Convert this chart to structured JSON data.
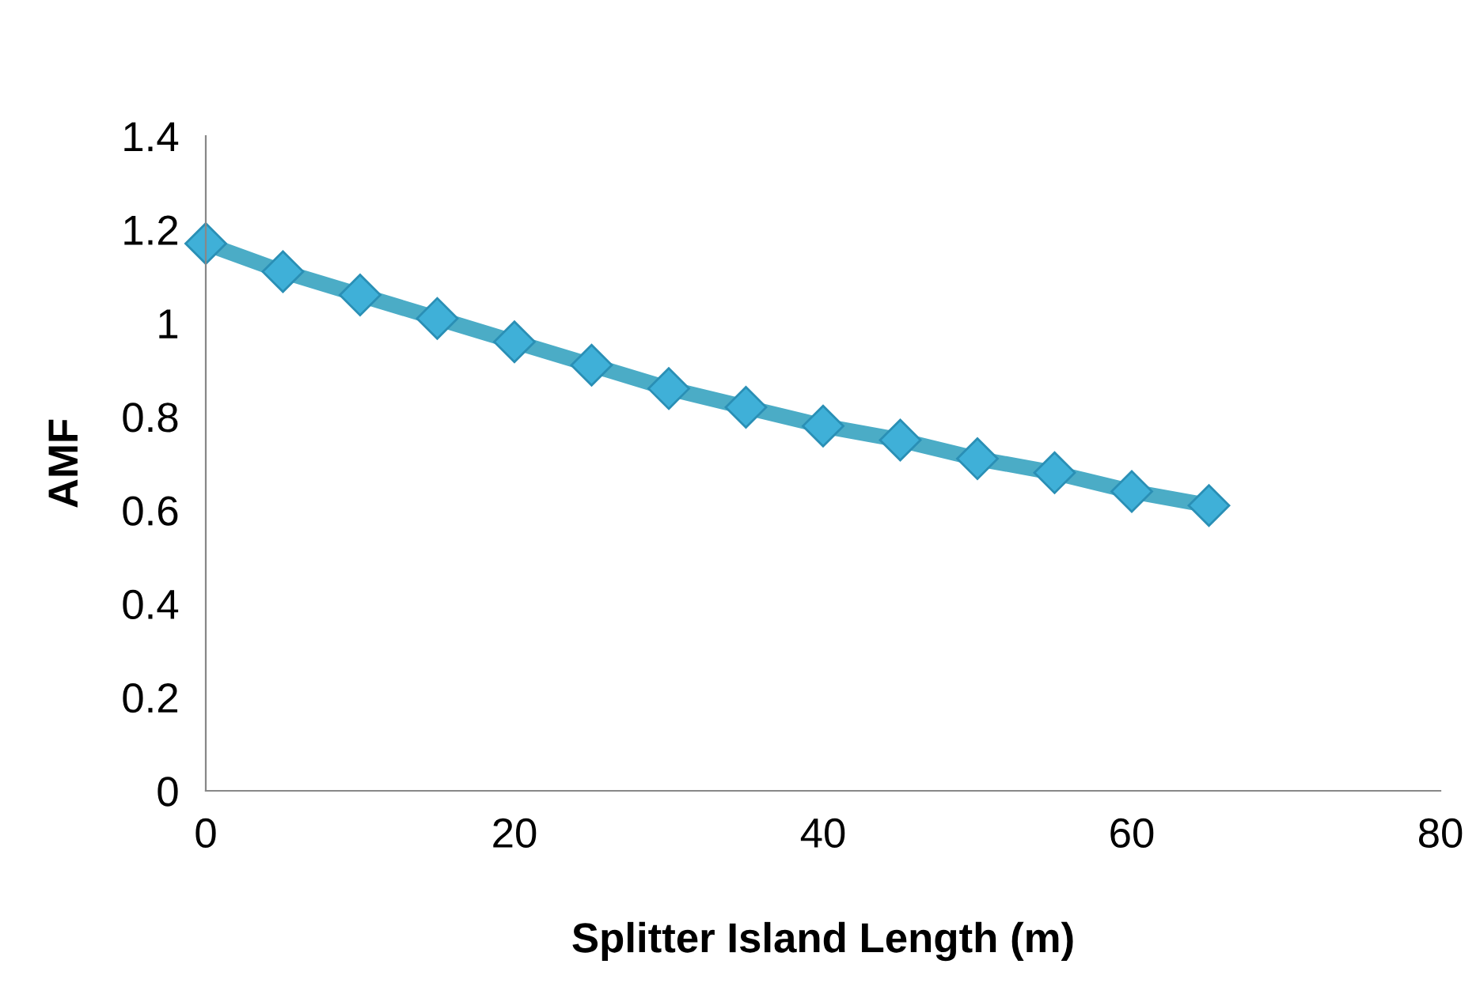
{
  "chart_data": {
    "type": "line",
    "xlabel": "Splitter Island Length (m)",
    "ylabel": "AMF",
    "x": [
      0,
      5,
      10,
      15,
      20,
      25,
      30,
      35,
      40,
      45,
      50,
      55,
      60,
      65
    ],
    "series": [
      {
        "color": "#4bacc6",
        "values": [
          1.17,
          1.11,
          1.06,
          1.01,
          0.96,
          0.91,
          0.86,
          0.82,
          0.78,
          0.75,
          0.71,
          0.68,
          0.64,
          0.61
        ]
      }
    ],
    "xlim": [
      0,
      80
    ],
    "xticks": [
      0,
      20,
      40,
      60,
      80
    ],
    "ylim": [
      0,
      1.4
    ],
    "yticks": [
      0,
      0.2,
      0.4,
      0.6,
      0.8,
      1,
      1.2,
      1.4
    ],
    "grid": false,
    "legend": false,
    "marker": "diamond",
    "line_style": "solid"
  }
}
